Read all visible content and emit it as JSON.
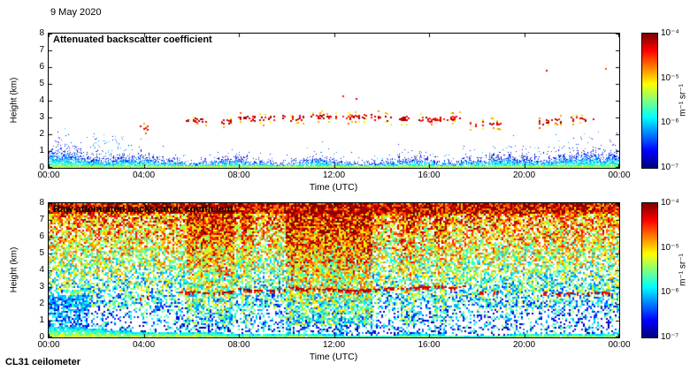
{
  "page": {
    "date_label": "9 May 2020",
    "footer_label": "CL31 ceilometer"
  },
  "axes": {
    "x_label": "Time (UTC)",
    "y_label": "Height (km)",
    "x_ticks": [
      "00:00",
      "04:00",
      "08:00",
      "12:00",
      "16:00",
      "20:00",
      "00:00"
    ],
    "y_ticks": [
      "8",
      "7",
      "6",
      "5",
      "4",
      "3",
      "2",
      "1",
      "0"
    ],
    "x_range_hours": [
      0,
      24
    ],
    "y_range_km": [
      0,
      8
    ]
  },
  "colorbar": {
    "tick_labels": [
      "10⁻⁴",
      "10⁻⁵",
      "10⁻⁶",
      "10⁻⁷"
    ],
    "unit_label": "m⁻¹ sr⁻¹",
    "colormap": "jet",
    "scale": "log",
    "value_min": 1e-07,
    "value_max": 0.0001
  },
  "panels": [
    {
      "title": "Attenuated backscatter coefficient"
    },
    {
      "title": "Raw attenuated backscatter coefficient"
    }
  ],
  "chart_data": [
    {
      "type": "heatmap",
      "title": "Attenuated backscatter coefficient",
      "xlabel": "Time (UTC)",
      "ylabel": "Height (km)",
      "x_hours": [
        0,
        24
      ],
      "ylim": [
        0,
        8
      ],
      "value_log10_range": [
        -7,
        -4
      ],
      "units": "m⁻¹ sr⁻¹",
      "colormap": "jet",
      "grid": false,
      "features": {
        "boundary_layer": {
          "height_km_at_00": 1.2,
          "height_km_midday": 0.35,
          "height_km_evening": 0.9,
          "value_log10_range": [
            -6.8,
            -5.0
          ]
        },
        "plume": {
          "t0": 1.8,
          "t1": 3.4,
          "h_top": 2.0
        },
        "cloud_segments": [
          {
            "t0": 3.6,
            "t1": 4.2,
            "h": 2.45,
            "density": 0.5,
            "fringe": 0.5
          },
          {
            "t0": 5.7,
            "t1": 7.7,
            "h": 2.75,
            "density": 0.55,
            "fringe": 0.2
          },
          {
            "t0": 7.9,
            "t1": 9.9,
            "h": 2.95,
            "density": 0.6,
            "fringe": 0.25
          },
          {
            "t0": 10.1,
            "t1": 10.7,
            "h": 2.9,
            "density": 0.5,
            "fringe": 0.2
          },
          {
            "t0": 11.0,
            "t1": 14.5,
            "h": 3.05,
            "density": 0.75,
            "fringe": 0.35
          },
          {
            "t0": 14.6,
            "t1": 17.3,
            "h": 2.95,
            "density": 0.65,
            "fringe": 0.2
          },
          {
            "t0": 17.5,
            "t1": 19.0,
            "h": 2.65,
            "density": 0.35,
            "fringe": 0.55
          },
          {
            "t0": 20.4,
            "t1": 22.6,
            "h": 2.7,
            "density": 0.6,
            "fringe": 0.4
          }
        ],
        "isolated_points": [
          {
            "t": 12.35,
            "h": 4.25
          },
          {
            "t": 12.9,
            "h": 4.1
          },
          {
            "t": 20.9,
            "h": 5.8
          },
          {
            "t": 23.4,
            "h": 5.9
          },
          {
            "t": 22.9,
            "h": 2.9
          }
        ]
      }
    },
    {
      "type": "heatmap",
      "title": "Raw attenuated backscatter coefficient",
      "xlabel": "Time (UTC)",
      "ylabel": "Height (km)",
      "x_hours": [
        0,
        24
      ],
      "ylim": [
        0,
        8
      ],
      "value_log10_range": [
        -7,
        -4
      ],
      "units": "m⁻¹ sr⁻¹",
      "colormap": "jet",
      "grid": false,
      "features": {
        "noise": {
          "base_log10_surface": -6.45,
          "base_log10_top": -4.55,
          "spread": 1.55
        },
        "surface_layer": {
          "height_km_at_00": 0.72,
          "height_km_midday": 0.25,
          "height_km_end": 0.35
        },
        "streaks": [
          {
            "t0": 5.8,
            "t1": 7.8,
            "strength": 0.5
          },
          {
            "t0": 8.1,
            "t1": 8.6,
            "strength": 0.3
          },
          {
            "t0": 9.9,
            "t1": 13.6,
            "strength": 0.65
          },
          {
            "t0": 14.8,
            "t1": 15.4,
            "strength": 0.3
          },
          {
            "t0": 16.2,
            "t1": 16.7,
            "strength": 0.25
          }
        ],
        "cloud_segments": [
          {
            "t0": 3.6,
            "t1": 4.2,
            "h": 2.4,
            "density": 0.55
          },
          {
            "t0": 5.5,
            "t1": 7.8,
            "h": 2.7,
            "density": 0.75
          },
          {
            "t0": 7.9,
            "t1": 9.9,
            "h": 2.9,
            "density": 0.7
          },
          {
            "t0": 10.1,
            "t1": 14.5,
            "h": 3.0,
            "density": 0.8
          },
          {
            "t0": 14.6,
            "t1": 17.5,
            "h": 2.9,
            "density": 0.7
          },
          {
            "t0": 17.6,
            "t1": 19.0,
            "h": 2.6,
            "density": 0.35
          },
          {
            "t0": 20.5,
            "t1": 23.7,
            "h": 2.6,
            "density": 0.6
          }
        ]
      }
    }
  ]
}
